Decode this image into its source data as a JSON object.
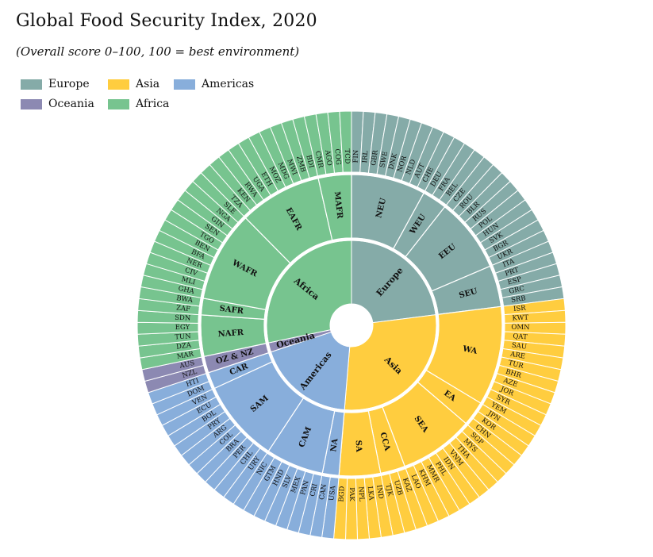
{
  "title": "Global Food Security Index, 2020",
  "subtitle": "(Overall score 0–100, 100 = best environment)",
  "legend": [
    {
      "name": "Europe",
      "color": "#85ABA8"
    },
    {
      "name": "Asia",
      "color": "#FFCD3F"
    },
    {
      "name": "Americas",
      "color": "#88AEDB"
    },
    {
      "name": "Oceania",
      "color": "#8C89B2"
    },
    {
      "name": "Africa",
      "color": "#77C48F"
    }
  ],
  "chart_data": {
    "type": "sunburst",
    "title": "Global Food Security Index, 2020",
    "subtitle": "(Overall score 0–100, 100 = best environment)",
    "legend_position": "top-left",
    "hierarchy": [
      {
        "name": "Europe",
        "color": "#85ABA8",
        "children": [
          {
            "name": "NEU",
            "countries": [
              "FIN",
              "IRL",
              "GBR",
              "SWE",
              "DNK",
              "NOR",
              "NLD",
              "AUT",
              "CHE"
            ]
          },
          {
            "name": "WEU",
            "countries": [
              "DEU",
              "FRA",
              "BEL"
            ]
          },
          {
            "name": "EEU",
            "countries": [
              "CZE",
              "ROU",
              "BLR",
              "RUS",
              "POL",
              "HUN",
              "SVK",
              "BGR",
              "UKR"
            ]
          },
          {
            "name": "SEU",
            "countries": [
              "ITA",
              "PRT",
              "ESP",
              "GRC",
              "SRB"
            ]
          }
        ]
      },
      {
        "name": "Asia",
        "color": "#FFCD3F",
        "children": [
          {
            "name": "WA",
            "countries": [
              "ISR",
              "KWT",
              "OMN",
              "QAT",
              "SAU",
              "ARE",
              "TUR",
              "BHR",
              "AZE",
              "JOR",
              "SYR",
              "YEM"
            ]
          },
          {
            "name": "EA",
            "countries": [
              "JPN",
              "KOR",
              "CHN"
            ]
          },
          {
            "name": "SEA",
            "countries": [
              "SGP",
              "MYS",
              "THA",
              "VNM",
              "IDN",
              "PHL",
              "MMR",
              "KHM",
              "LAO"
            ]
          },
          {
            "name": "CCA",
            "countries": [
              "KAZ",
              "UZB",
              "TJK"
            ]
          },
          {
            "name": "SA",
            "countries": [
              "IND",
              "LKA",
              "NPL",
              "PAK",
              "BGD"
            ]
          }
        ]
      },
      {
        "name": "Americas",
        "color": "#88AEDB",
        "children": [
          {
            "name": "NA",
            "countries": [
              "USA",
              "CAN"
            ]
          },
          {
            "name": "CAM",
            "countries": [
              "CRI",
              "PAN",
              "MEX",
              "SLV",
              "HND",
              "GTM",
              "NIC"
            ]
          },
          {
            "name": "SAM",
            "countries": [
              "URY",
              "CHL",
              "PER",
              "BRA",
              "COL",
              "ARG",
              "PRY",
              "BOL",
              "ECU",
              "VEN"
            ]
          },
          {
            "name": "CAR",
            "countries": [
              "DOM",
              "HTI"
            ]
          }
        ]
      },
      {
        "name": "Oceania",
        "color": "#8C89B2",
        "children": [
          {
            "name": "OZ & NZ",
            "countries": [
              "NZL",
              "AUS"
            ]
          }
        ]
      },
      {
        "name": "Africa",
        "color": "#77C48F",
        "children": [
          {
            "name": "NAFR",
            "countries": [
              "MAR",
              "DZA",
              "TUN",
              "EGY",
              "SDN"
            ]
          },
          {
            "name": "SAFR",
            "countries": [
              "ZAF",
              "BWA"
            ]
          },
          {
            "name": "WAFR",
            "countries": [
              "GHA",
              "MLI",
              "CIV",
              "NER",
              "BFA",
              "BEN",
              "TGO",
              "SEN",
              "GIN",
              "NGA",
              "SLE"
            ]
          },
          {
            "name": "EAFR",
            "countries": [
              "TZA",
              "KEN",
              "RWA",
              "UGA",
              "ETH",
              "MOZ",
              "MDG",
              "MWI",
              "ZMB",
              "BDI"
            ]
          },
          {
            "name": "MAFR",
            "countries": [
              "CMR",
              "AGO",
              "COG",
              "TCD"
            ]
          }
        ]
      }
    ]
  }
}
